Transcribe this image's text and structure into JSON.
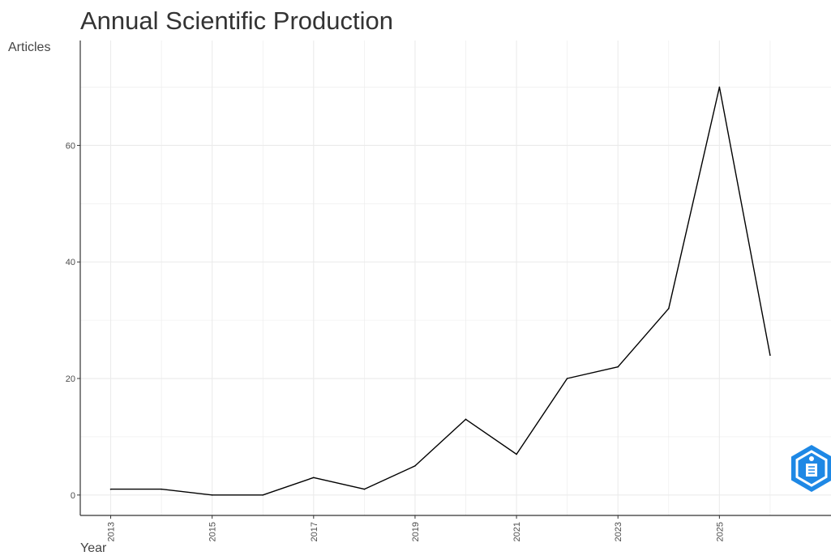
{
  "chart_data": {
    "type": "line",
    "title": "Annual Scientific Production",
    "xlabel": "Year",
    "ylabel": "Articles",
    "x": [
      2013,
      2014,
      2015,
      2016,
      2017,
      2018,
      2019,
      2020,
      2021,
      2022,
      2023,
      2024,
      2025,
      2026
    ],
    "series": [
      {
        "values": [
          1,
          1,
          0,
          0,
          3,
          1,
          5,
          13,
          7,
          20,
          22,
          32,
          70,
          24
        ]
      }
    ],
    "x_ticks": [
      "2013",
      "2015",
      "2017",
      "2019",
      "2021",
      "2023",
      "2025"
    ],
    "y_ticks": [
      "0",
      "20",
      "40",
      "60"
    ],
    "xlim": [
      2012.4,
      2027.2
    ],
    "ylim": [
      -3.5,
      78
    ],
    "grid": true,
    "line_color": "#000000",
    "grid_color": "#ebebeb"
  },
  "watermark": {
    "icon": "bibliometrix-logo-icon",
    "color": "#1e88e5"
  }
}
